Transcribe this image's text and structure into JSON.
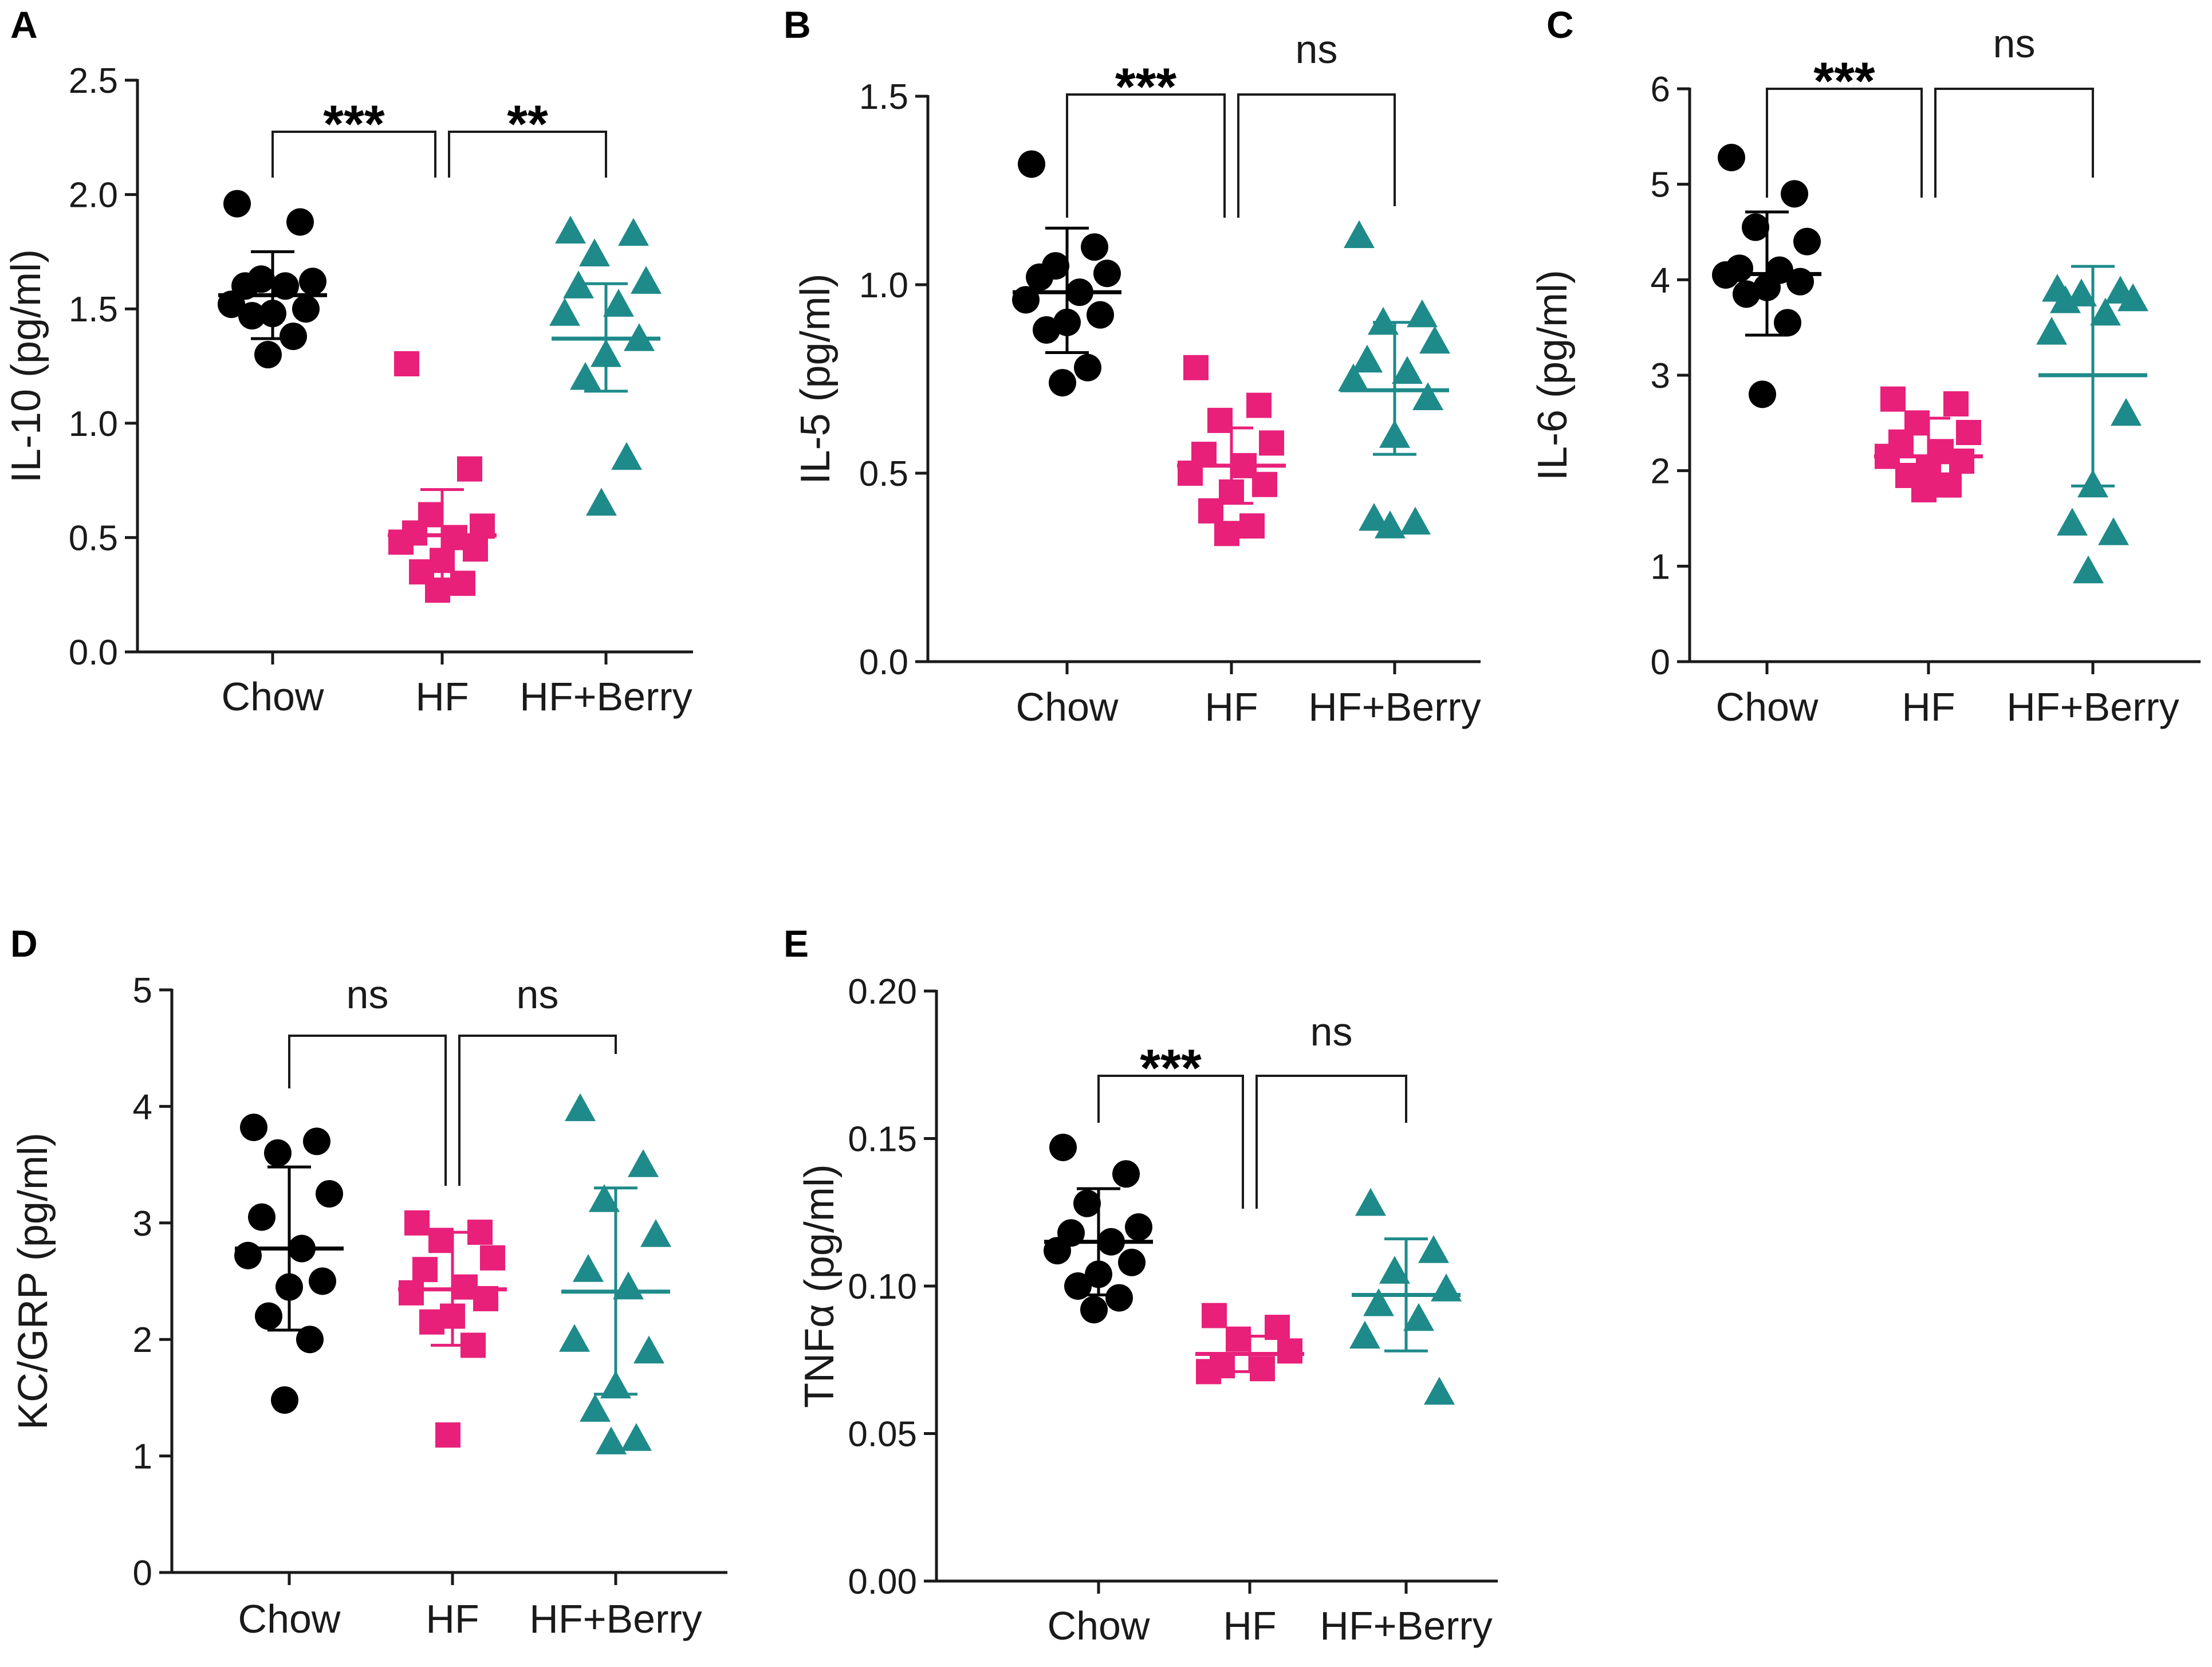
{
  "colors": {
    "Chow": "#000000",
    "HF": "#e8207a",
    "HF+Berry": "#1f8a8a",
    "axis": "#1a1a1a"
  },
  "chart_data": [
    {
      "panel": "A",
      "type": "scatter",
      "ylabel": "IL-10 (pg/ml)",
      "ylim": [
        0,
        2.5
      ],
      "yticks": [
        0.0,
        0.5,
        1.0,
        1.5,
        2.0,
        2.5
      ],
      "ytick_labels": [
        "0.0",
        "0.5",
        "1.0",
        "1.5",
        "2.0",
        "2.5"
      ],
      "categories": [
        "Chow",
        "HF",
        "HF+Berry"
      ],
      "series": [
        {
          "name": "Chow",
          "marker": "circle",
          "mean": 1.56,
          "sd_low": 1.37,
          "sd_high": 1.75,
          "points": [
            1.96,
            1.88,
            1.63,
            1.62,
            1.6,
            1.6,
            1.52,
            1.5,
            1.48,
            1.47,
            1.38,
            1.3
          ]
        },
        {
          "name": "HF",
          "marker": "square",
          "mean": 0.51,
          "sd_low": 0.31,
          "sd_high": 0.71,
          "points": [
            1.26,
            0.8,
            0.6,
            0.55,
            0.52,
            0.5,
            0.48,
            0.45,
            0.4,
            0.35,
            0.3,
            0.27
          ]
        },
        {
          "name": "HF+Berry",
          "marker": "triangle",
          "mean": 1.37,
          "sd_low": 1.14,
          "sd_high": 1.61,
          "points": [
            1.84,
            1.83,
            1.74,
            1.62,
            1.6,
            1.52,
            1.48,
            1.37,
            1.3,
            1.2,
            0.85,
            0.65
          ]
        }
      ],
      "comparisons": [
        {
          "groups": [
            "Chow",
            "HF"
          ],
          "label": "***"
        },
        {
          "groups": [
            "HF",
            "HF+Berry"
          ],
          "label": "**"
        }
      ]
    },
    {
      "panel": "B",
      "type": "scatter",
      "ylabel": "IL-5 (pg/ml)",
      "ylim": [
        0,
        1.5
      ],
      "yticks": [
        0.0,
        0.5,
        1.0,
        1.5
      ],
      "ytick_labels": [
        "0.0",
        "0.5",
        "1.0",
        "1.5"
      ],
      "categories": [
        "Chow",
        "HF",
        "HF+Berry"
      ],
      "series": [
        {
          "name": "Chow",
          "marker": "circle",
          "mean": 0.98,
          "sd_low": 0.82,
          "sd_high": 1.15,
          "points": [
            1.32,
            1.1,
            1.05,
            1.03,
            1.02,
            0.98,
            0.96,
            0.92,
            0.9,
            0.88,
            0.78,
            0.74
          ]
        },
        {
          "name": "HF",
          "marker": "square",
          "mean": 0.52,
          "sd_low": 0.42,
          "sd_high": 0.62,
          "points": [
            0.78,
            0.68,
            0.64,
            0.58,
            0.55,
            0.52,
            0.5,
            0.47,
            0.45,
            0.4,
            0.36,
            0.34
          ]
        },
        {
          "name": "HF+Berry",
          "marker": "triangle",
          "mean": 0.72,
          "sd_low": 0.55,
          "sd_high": 0.9,
          "points": [
            1.13,
            0.92,
            0.9,
            0.85,
            0.8,
            0.77,
            0.75,
            0.7,
            0.6,
            0.38,
            0.37,
            0.36
          ]
        }
      ],
      "comparisons": [
        {
          "groups": [
            "Chow",
            "HF"
          ],
          "label": "***"
        },
        {
          "groups": [
            "HF",
            "HF+Berry"
          ],
          "label": "ns"
        }
      ]
    },
    {
      "panel": "C",
      "type": "scatter",
      "ylabel": "IL-6 (pg/ml)",
      "ylim": [
        0,
        6
      ],
      "yticks": [
        0,
        1,
        2,
        3,
        4,
        5,
        6
      ],
      "ytick_labels": [
        "0",
        "1",
        "2",
        "3",
        "4",
        "5",
        "6"
      ],
      "categories": [
        "Chow",
        "HF",
        "HF+Berry"
      ],
      "series": [
        {
          "name": "Chow",
          "marker": "circle",
          "mean": 4.06,
          "sd_low": 3.42,
          "sd_high": 4.71,
          "points": [
            5.28,
            4.9,
            4.55,
            4.4,
            4.12,
            4.1,
            4.05,
            3.98,
            3.92,
            3.85,
            3.55,
            2.8
          ]
        },
        {
          "name": "HF",
          "marker": "square",
          "mean": 2.15,
          "sd_low": 1.9,
          "sd_high": 2.55,
          "points": [
            2.75,
            2.7,
            2.5,
            2.4,
            2.3,
            2.2,
            2.15,
            2.1,
            2.0,
            1.95,
            1.85,
            1.8
          ]
        },
        {
          "name": "HF+Berry",
          "marker": "triangle",
          "mean": 3.0,
          "sd_low": 1.84,
          "sd_high": 4.14,
          "points": [
            3.9,
            3.88,
            3.85,
            3.8,
            3.78,
            3.65,
            3.45,
            2.6,
            1.85,
            1.45,
            1.35,
            0.95
          ]
        }
      ],
      "comparisons": [
        {
          "groups": [
            "Chow",
            "HF"
          ],
          "label": "***"
        },
        {
          "groups": [
            "HF",
            "HF+Berry"
          ],
          "label": "ns"
        }
      ]
    },
    {
      "panel": "D",
      "type": "scatter",
      "ylabel": "KC/GRP (pg/ml)",
      "ylim": [
        0,
        5
      ],
      "yticks": [
        0,
        1,
        2,
        3,
        4,
        5
      ],
      "ytick_labels": [
        "0",
        "1",
        "2",
        "3",
        "4",
        "5"
      ],
      "categories": [
        "Chow",
        "HF",
        "HF+Berry"
      ],
      "series": [
        {
          "name": "Chow",
          "marker": "circle",
          "mean": 2.78,
          "sd_low": 2.08,
          "sd_high": 3.48,
          "points": [
            3.82,
            3.7,
            3.6,
            3.25,
            3.05,
            2.78,
            2.72,
            2.5,
            2.45,
            2.2,
            2.0,
            1.48
          ]
        },
        {
          "name": "HF",
          "marker": "square",
          "mean": 2.43,
          "sd_low": 1.95,
          "sd_high": 2.92,
          "points": [
            3.0,
            2.92,
            2.85,
            2.7,
            2.6,
            2.45,
            2.4,
            2.35,
            2.2,
            2.15,
            1.95,
            1.18
          ]
        },
        {
          "name": "HF+Berry",
          "marker": "triangle",
          "mean": 2.41,
          "sd_low": 1.53,
          "sd_high": 3.3,
          "points": [
            3.98,
            3.5,
            3.2,
            2.9,
            2.6,
            2.45,
            2.0,
            1.9,
            1.6,
            1.4,
            1.15,
            1.12
          ]
        }
      ],
      "comparisons": [
        {
          "groups": [
            "Chow",
            "HF"
          ],
          "label": "ns"
        },
        {
          "groups": [
            "HF",
            "HF+Berry"
          ],
          "label": "ns"
        }
      ]
    },
    {
      "panel": "E",
      "type": "scatter",
      "ylabel": "TNFα (pg/ml)",
      "ylim": [
        0,
        0.2
      ],
      "yticks": [
        0.0,
        0.05,
        0.1,
        0.15,
        0.2
      ],
      "ytick_labels": [
        "0.00",
        "0.05",
        "0.10",
        "0.15",
        "0.20"
      ],
      "categories": [
        "Chow",
        "HF",
        "HF+Berry"
      ],
      "series": [
        {
          "name": "Chow",
          "marker": "circle",
          "mean": 0.115,
          "sd_low": 0.097,
          "sd_high": 0.133,
          "points": [
            0.147,
            0.138,
            0.128,
            0.12,
            0.118,
            0.115,
            0.112,
            0.108,
            0.104,
            0.1,
            0.096,
            0.092
          ]
        },
        {
          "name": "HF",
          "marker": "square",
          "mean": 0.077,
          "sd_low": 0.071,
          "sd_high": 0.083,
          "points": [
            0.09,
            0.086,
            0.082,
            0.078,
            0.073,
            0.072,
            0.071
          ]
        },
        {
          "name": "HF+Berry",
          "marker": "triangle",
          "mean": 0.097,
          "sd_low": 0.078,
          "sd_high": 0.116,
          "points": [
            0.128,
            0.112,
            0.105,
            0.099,
            0.094,
            0.089,
            0.083,
            0.064
          ]
        }
      ],
      "comparisons": [
        {
          "groups": [
            "Chow",
            "HF"
          ],
          "label": "***"
        },
        {
          "groups": [
            "HF",
            "HF+Berry"
          ],
          "label": "ns"
        }
      ]
    }
  ]
}
